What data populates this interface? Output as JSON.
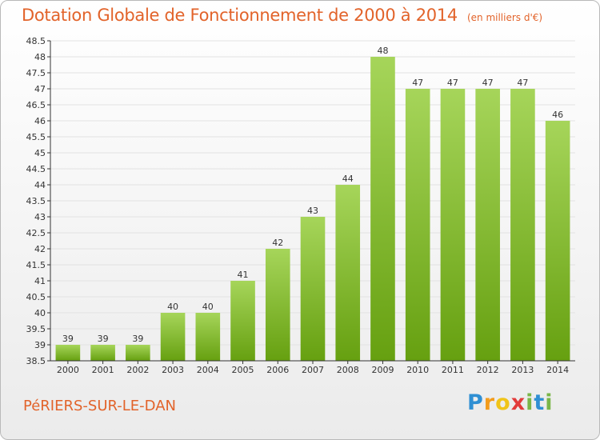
{
  "header": {
    "title": "Dotation Globale de Fonctionnement de 2000 à 2014",
    "unit": "(en milliers d'€)"
  },
  "footer": {
    "commune": "PéRIERS-SUR-LE-DAN",
    "logo_letters": [
      "P",
      "r",
      "o",
      "x",
      "i",
      "t",
      "i"
    ],
    "logo_colors": [
      "#2f8fd3",
      "#f39c1c",
      "#f0c419",
      "#e23b3b",
      "#7ab648",
      "#2f8fd3",
      "#7ab648"
    ]
  },
  "colors": {
    "bar_top": "#a6d55a",
    "bar_bottom": "#66a010",
    "grid": "#e2e2e2",
    "axis": "#333333",
    "accent": "#e2632a"
  },
  "chart_data": {
    "type": "bar",
    "categories": [
      "2000",
      "2001",
      "2002",
      "2003",
      "2004",
      "2005",
      "2006",
      "2007",
      "2008",
      "2009",
      "2010",
      "2011",
      "2012",
      "2013",
      "2014"
    ],
    "values": [
      39,
      39,
      39,
      40,
      40,
      41,
      42,
      43,
      44,
      48,
      47,
      47,
      47,
      47,
      46
    ],
    "data_labels": [
      "39",
      "39",
      "39",
      "40",
      "40",
      "41",
      "42",
      "43",
      "44",
      "48",
      "47",
      "47",
      "47",
      "47",
      "46"
    ],
    "title": "Dotation Globale de Fonctionnement de 2000 à 2014",
    "xlabel": "",
    "ylabel": "",
    "ylim": [
      38.5,
      48.5
    ],
    "yticks": [
      38.5,
      39,
      39.5,
      40,
      40.5,
      41,
      41.5,
      42,
      42.5,
      43,
      43.5,
      44,
      44.5,
      45,
      45.5,
      46,
      46.5,
      47,
      47.5,
      48,
      48.5
    ],
    "ytick_labels": [
      "38.5",
      "39",
      "39.5",
      "40",
      "40.5",
      "41",
      "41.5",
      "42",
      "42.5",
      "43",
      "43.5",
      "44",
      "44.5",
      "45",
      "45.5",
      "46",
      "46.5",
      "47",
      "47.5",
      "48",
      "48.5"
    ],
    "grid": true,
    "legend": "none"
  }
}
